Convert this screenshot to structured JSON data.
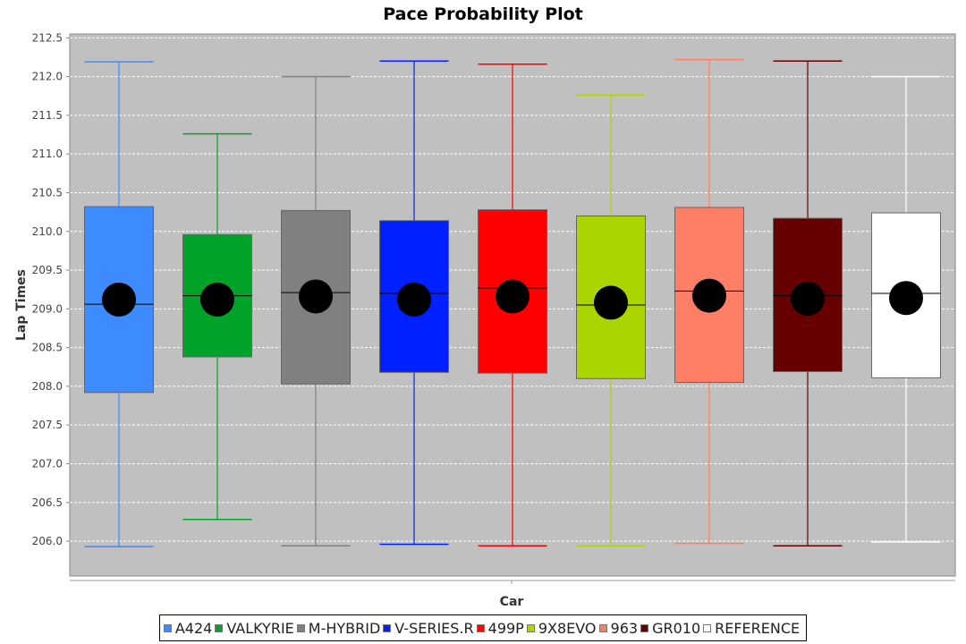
{
  "chart_data": {
    "type": "box",
    "title": "Pace Probability Plot",
    "xlabel": "Car",
    "ylabel": "Lap Times",
    "ylim": [
      205.55,
      212.55
    ],
    "yticks": [
      206.0,
      206.5,
      207.0,
      207.5,
      208.0,
      208.5,
      209.0,
      209.5,
      210.0,
      210.5,
      211.0,
      211.5,
      212.0,
      212.5
    ],
    "grid": true,
    "legend_position": "bottom",
    "series": [
      {
        "name": "A424",
        "color": "#3d8bff",
        "min": 205.93,
        "q1": 207.92,
        "median": 209.06,
        "mean": 209.12,
        "q3": 210.32,
        "max": 212.19
      },
      {
        "name": "VALKYRIE",
        "color": "#00a32a",
        "min": 206.28,
        "q1": 208.38,
        "median": 209.17,
        "mean": 209.12,
        "q3": 209.96,
        "max": 211.26
      },
      {
        "name": "M-HYBRID",
        "color": "#808080",
        "min": 205.94,
        "q1": 208.03,
        "median": 209.21,
        "mean": 209.16,
        "q3": 210.27,
        "max": 212.0
      },
      {
        "name": "V-SERIES.R",
        "color": "#0020ff",
        "min": 205.96,
        "q1": 208.18,
        "median": 209.2,
        "mean": 209.12,
        "q3": 210.14,
        "max": 212.2
      },
      {
        "name": "499P",
        "color": "#ff0000",
        "min": 205.94,
        "q1": 208.17,
        "median": 209.27,
        "mean": 209.16,
        "q3": 210.28,
        "max": 212.16
      },
      {
        "name": "9X8EVO",
        "color": "#aad500",
        "min": 205.94,
        "q1": 208.1,
        "median": 209.05,
        "mean": 209.08,
        "q3": 210.2,
        "max": 211.76
      },
      {
        "name": "963",
        "color": "#ff7f66",
        "min": 205.97,
        "q1": 208.05,
        "median": 209.23,
        "mean": 209.17,
        "q3": 210.31,
        "max": 212.22
      },
      {
        "name": "GR010",
        "color": "#660000",
        "min": 205.94,
        "q1": 208.19,
        "median": 209.17,
        "mean": 209.13,
        "q3": 210.17,
        "max": 212.2
      },
      {
        "name": "REFERENCE",
        "color": "#ffffff",
        "min": 205.99,
        "q1": 208.11,
        "median": 209.2,
        "mean": 209.14,
        "q3": 210.24,
        "max": 212.0
      }
    ]
  }
}
